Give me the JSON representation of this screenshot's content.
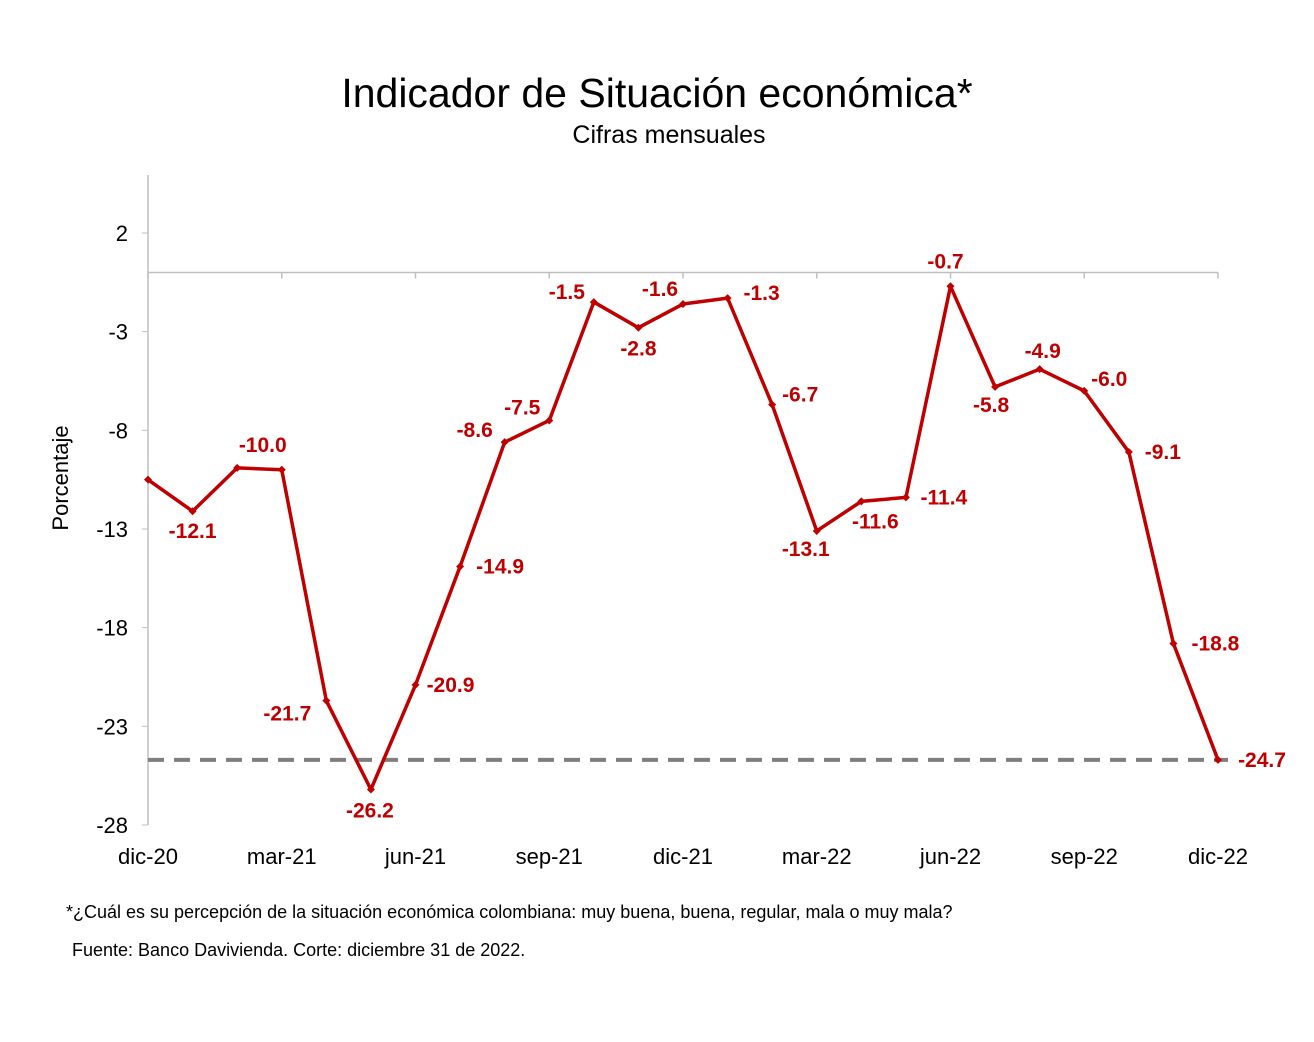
{
  "chart_data": {
    "type": "line",
    "title": "Indicador de Situación económica*",
    "subtitle": "Cifras mensuales",
    "ylabel": "Porcentaje",
    "xlabel": "",
    "ylim": [
      -28,
      2
    ],
    "yticks": [
      2,
      -3,
      -8,
      -13,
      -18,
      -23,
      -28
    ],
    "x": [
      "dic-20",
      "ene-21",
      "feb-21",
      "mar-21",
      "abr-21",
      "may-21",
      "jun-21",
      "jul-21",
      "ago-21",
      "sep-21",
      "oct-21",
      "nov-21",
      "dic-21",
      "ene-22",
      "feb-22",
      "mar-22",
      "abr-22",
      "may-22",
      "jun-22",
      "jul-22",
      "ago-22",
      "sep-22",
      "oct-22",
      "nov-22",
      "dic-22"
    ],
    "xtick_labels": [
      "dic-20",
      "mar-21",
      "jun-21",
      "sep-21",
      "dic-21",
      "mar-22",
      "jun-22",
      "sep-22",
      "dic-22"
    ],
    "series": [
      {
        "values": [
          -10.5,
          -12.1,
          -9.9,
          -10.0,
          -21.7,
          -26.2,
          -20.9,
          -14.9,
          -8.6,
          -7.5,
          -1.5,
          -2.8,
          -1.6,
          -1.3,
          -6.7,
          -13.1,
          -11.6,
          -11.4,
          -0.7,
          -5.8,
          -4.9,
          -6.0,
          -9.1,
          -18.8,
          -24.7
        ],
        "data_labels": [
          null,
          "-12.1",
          null,
          "-10.0",
          "-21.7",
          "-26.2",
          "-20.9",
          "-14.9",
          "-8.6",
          "-7.5",
          "-1.5",
          "-2.8",
          "-1.6",
          "-1.3",
          "-6.7",
          "-13.1",
          "-11.6",
          "-11.4",
          "-0.7",
          "-5.8",
          "-4.9",
          "-6.0",
          "-9.1",
          "-18.8",
          "-24.7"
        ],
        "color": "#c00000"
      }
    ],
    "reference_line": {
      "value": -24.7,
      "style": "dashed",
      "color": "#7f7f7f"
    },
    "grid": false,
    "legend": "none"
  },
  "footnote": "*¿Cuál es su percepción de la situación económica colombiana: muy buena, buena, regular, mala  o muy mala?",
  "source": "Fuente: Banco Davivienda. Corte: diciembre 31 de 2022."
}
